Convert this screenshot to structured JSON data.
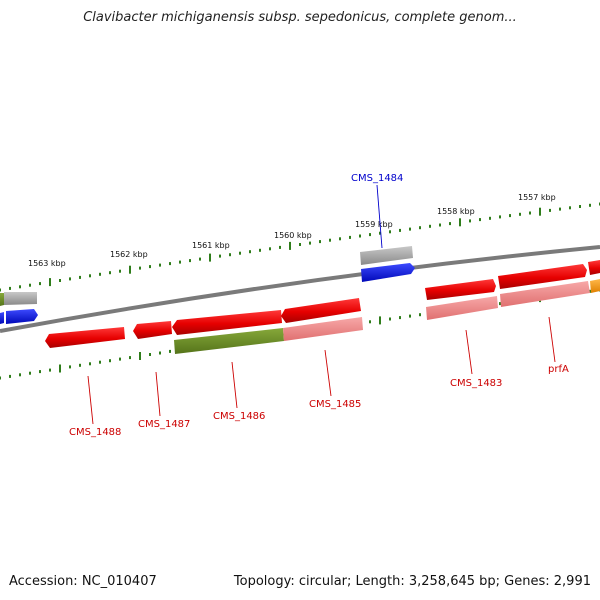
{
  "header": {
    "title": "Clavibacter michiganensis subsp. sepedonicus, complete genom..."
  },
  "footer": {
    "accession": "Accession: NC_010407",
    "summary": "Topology: circular; Length: 3,258,645 bp; Genes: 2,991"
  },
  "colors": {
    "backbone": "#7a7a7a",
    "tick": "#2f7d1b",
    "gene_red": "#ee0000",
    "gene_pink": "#f08a8a",
    "gene_green": "#6b8e23",
    "gene_gray": "#9a9a9a",
    "gene_blue": "#0a14f0",
    "gene_orange": "#f59a0a",
    "label_red": "#cc0000",
    "label_blue": "#0000cc"
  },
  "scale": {
    "labels": [
      "1563 kbp",
      "1562 kbp",
      "1561 kbp",
      "1560 kbp",
      "1559 kbp",
      "1558 kbp",
      "1557 kbp"
    ]
  },
  "genes": [
    {
      "label": "CMS_1484"
    },
    {
      "label": "CMS_1488"
    },
    {
      "label": "CMS_1487"
    },
    {
      "label": "CMS_1486"
    },
    {
      "label": "CMS_1485"
    },
    {
      "label": "CMS_1483"
    },
    {
      "label": "prfA"
    }
  ]
}
